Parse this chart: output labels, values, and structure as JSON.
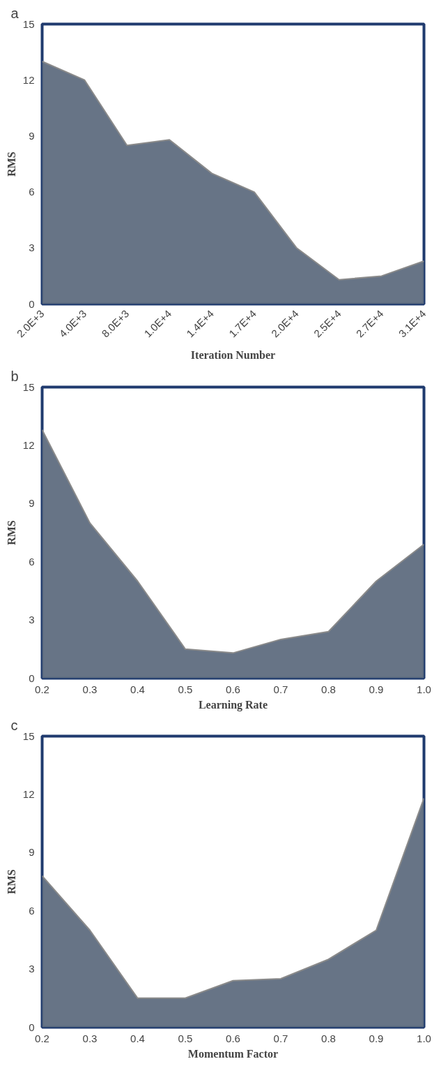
{
  "chart_data": [
    {
      "type": "area",
      "title": "a",
      "xlabel": "Iteration Number",
      "ylabel": "RMS",
      "categories": [
        "2.0E+3",
        "4.0E+3",
        "8.0E+3",
        "1.0E+4",
        "1.4E+4",
        "1.7E+4",
        "2.0E+4",
        "2.5E+4",
        "2.7E+4",
        "3.1E+4"
      ],
      "values": [
        13,
        12,
        8.5,
        8.8,
        7,
        6,
        3,
        1.3,
        1.5,
        2.3
      ],
      "color": "#5f6d80",
      "ylim": [
        0,
        15
      ],
      "yticks": [
        0,
        3,
        6,
        9,
        12,
        15
      ],
      "grid": false
    },
    {
      "type": "area",
      "title": "b",
      "xlabel": "Learning Rate",
      "ylabel": "RMS",
      "categories": [
        "0.2",
        "0.3",
        "0.4",
        "0.5",
        "0.6",
        "0.7",
        "0.8",
        "0.9",
        "1.0"
      ],
      "values": [
        12.8,
        8,
        5,
        1.5,
        1.3,
        2,
        2.4,
        5,
        6.9
      ],
      "color": "#5f6d80",
      "ylim": [
        0,
        15
      ],
      "yticks": [
        0,
        3,
        6,
        9,
        12,
        15
      ],
      "grid": false
    },
    {
      "type": "area",
      "title": "c",
      "xlabel": "Momentum Factor",
      "ylabel": "RMS",
      "categories": [
        "0.2",
        "0.3",
        "0.4",
        "0.5",
        "0.6",
        "0.7",
        "0.8",
        "0.9",
        "1.0"
      ],
      "values": [
        7.8,
        5,
        1.5,
        1.5,
        2.4,
        2.5,
        3.5,
        5,
        11.8
      ],
      "color": "#5f6d80",
      "ylim": [
        0,
        15
      ],
      "yticks": [
        0,
        3,
        6,
        9,
        12,
        15
      ],
      "grid": false
    }
  ]
}
